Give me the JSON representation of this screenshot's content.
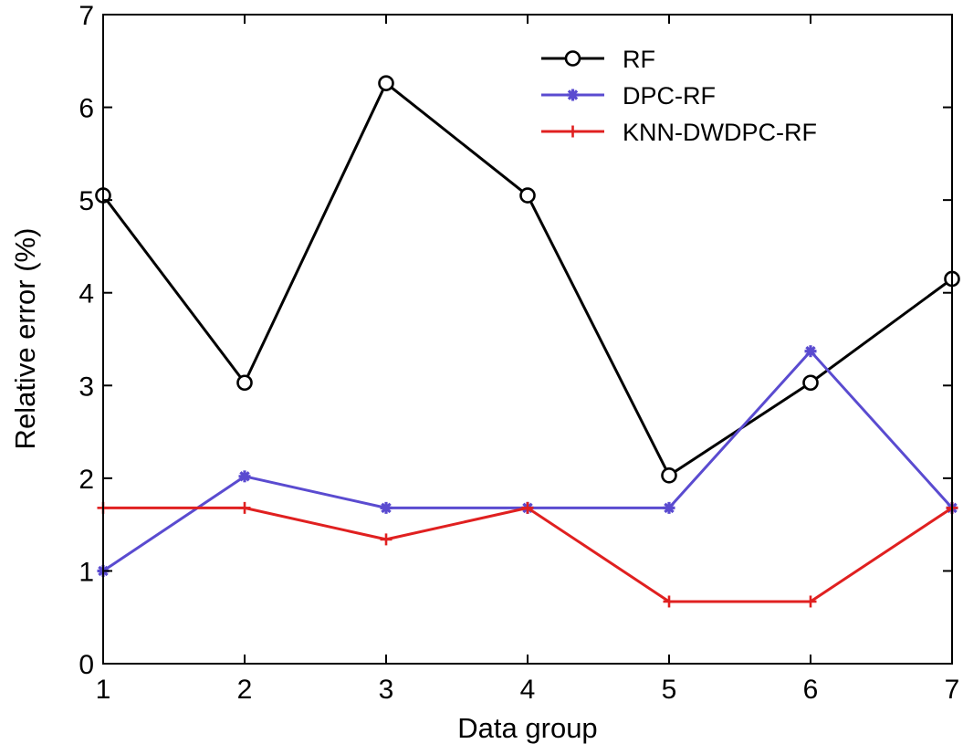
{
  "chart_data": {
    "type": "line",
    "title": "",
    "xlabel": "Data group",
    "ylabel": "Relative error (%)",
    "x": [
      1,
      2,
      3,
      4,
      5,
      6,
      7
    ],
    "xlim": [
      1,
      7
    ],
    "ylim": [
      0,
      7
    ],
    "xticks": [
      "1",
      "2",
      "3",
      "4",
      "5",
      "6",
      "7"
    ],
    "yticks": [
      "0",
      "1",
      "2",
      "3",
      "4",
      "5",
      "6",
      "7"
    ],
    "grid": false,
    "legend_position": "top-right",
    "series": [
      {
        "name": "RF",
        "color": "#000000",
        "marker": "circle",
        "values": [
          5.05,
          3.03,
          6.26,
          5.05,
          2.03,
          3.03,
          4.15
        ]
      },
      {
        "name": "DPC-RF",
        "color": "#5a4bd0",
        "marker": "star",
        "values": [
          1.0,
          2.02,
          1.68,
          1.68,
          1.68,
          3.37,
          1.68
        ]
      },
      {
        "name": "KNN-DWDPC-RF",
        "color": "#e02020",
        "marker": "plus",
        "values": [
          1.68,
          1.68,
          1.34,
          1.68,
          0.67,
          0.67,
          1.68
        ]
      }
    ]
  }
}
